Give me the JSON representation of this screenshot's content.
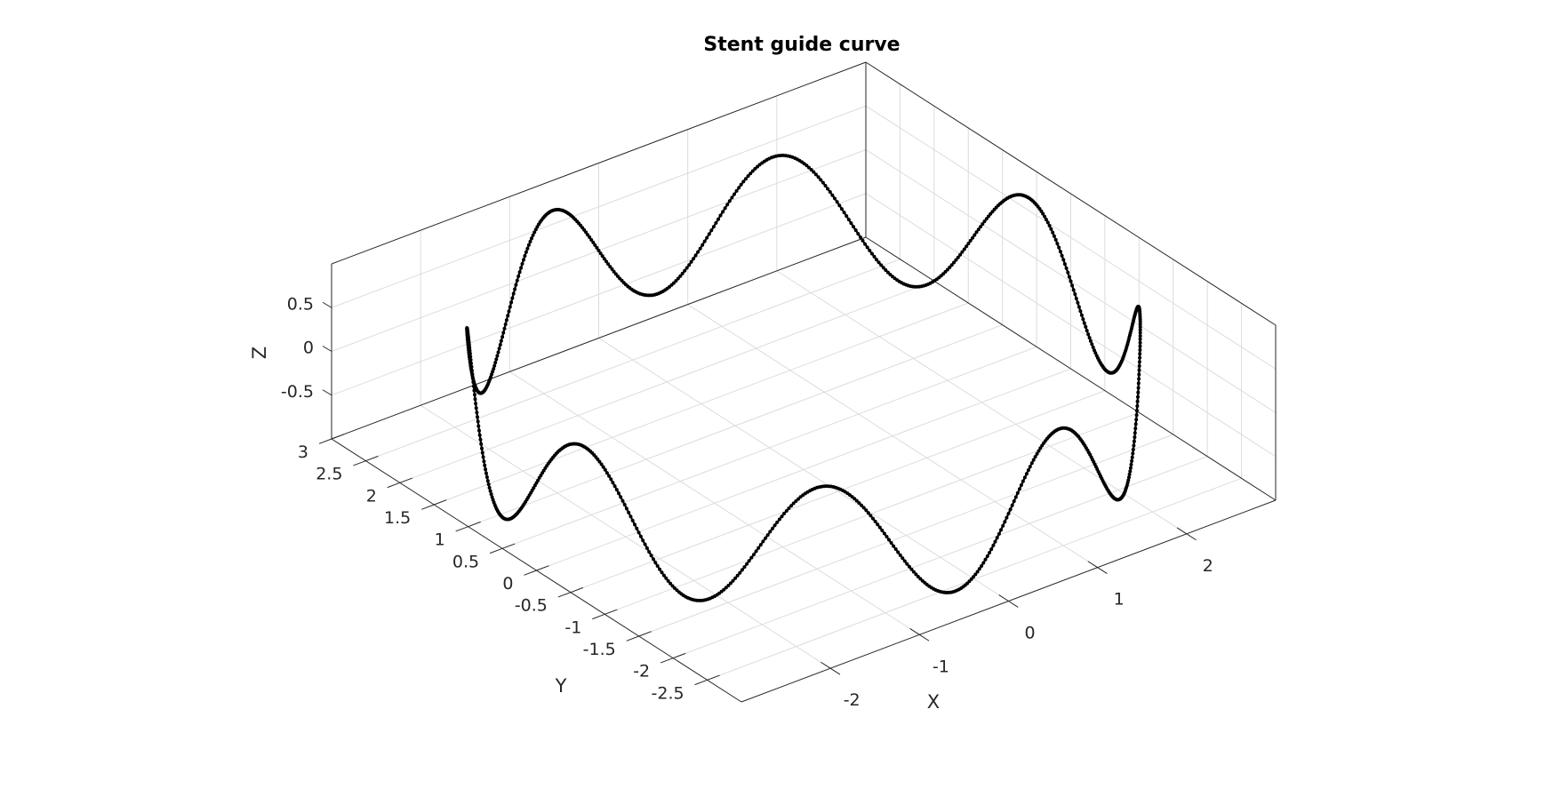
{
  "chart_data": {
    "type": "line",
    "plot_kind": "3d-line-with-markers",
    "title": "Stent guide curve",
    "xlabel": "X",
    "ylabel": "Y",
    "zlabel": "Z",
    "xlim": [
      -3,
      3
    ],
    "ylim": [
      -3,
      3
    ],
    "zlim": [
      -1,
      1
    ],
    "x_ticks": [
      "-2",
      "-1",
      "0",
      "1",
      "2"
    ],
    "y_ticks": [
      "-2.5",
      "-2",
      "-1.5",
      "-1",
      "-0.5",
      "0",
      "0.5",
      "1",
      "1.5",
      "2",
      "2.5",
      "3"
    ],
    "z_ticks": [
      "-0.5",
      "0",
      "0.5"
    ],
    "grid": true,
    "series": [
      {
        "curve": "circle with sinusoidal axial undulation",
        "radius": 3,
        "z_amplitude": 0.7,
        "undulations_per_turn": 8,
        "points": 900,
        "color": "#000000",
        "marker": "dot"
      }
    ]
  }
}
